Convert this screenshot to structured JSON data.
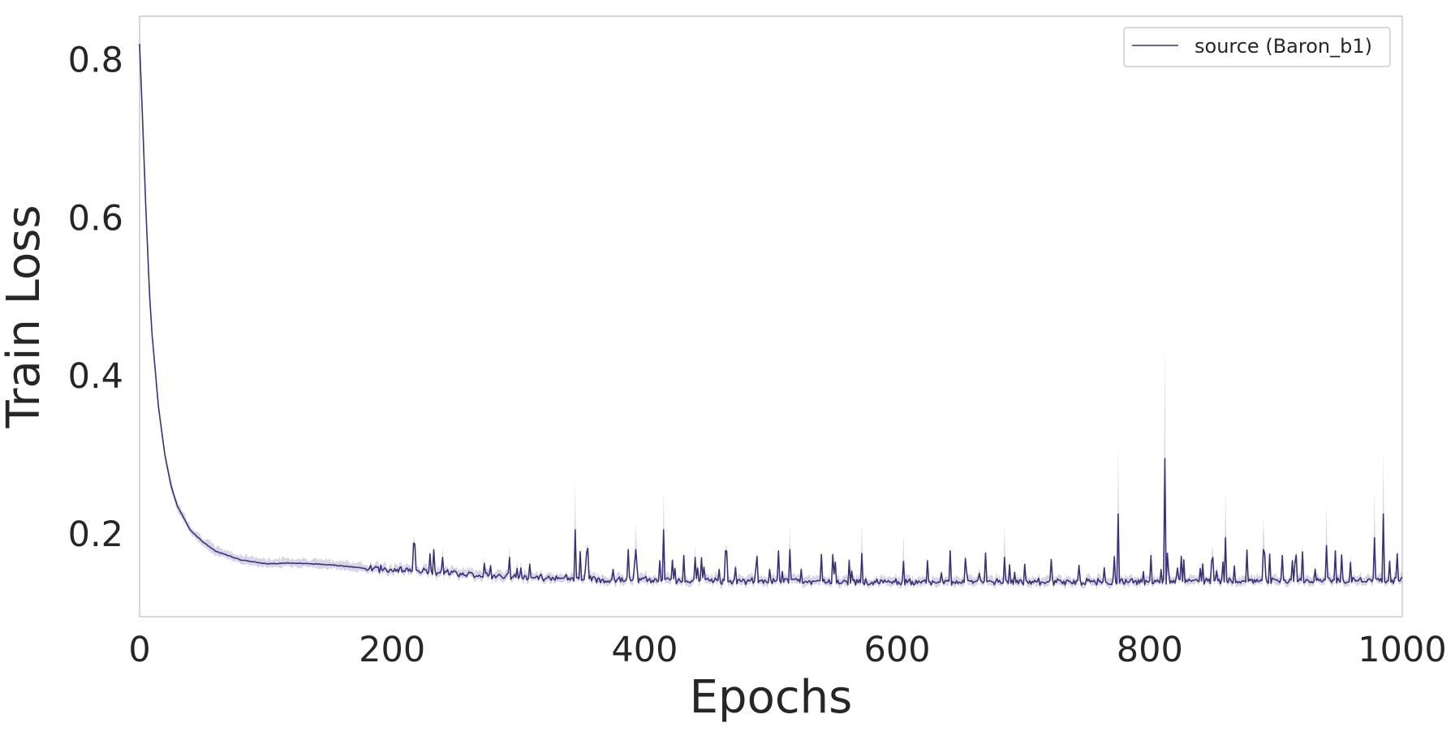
{
  "chart_data": {
    "type": "line",
    "title": "",
    "xlabel": "Epochs",
    "ylabel": "Train Loss",
    "xlim": [
      0,
      1000
    ],
    "ylim": [
      0.095,
      0.855
    ],
    "x_ticks": [
      0,
      200,
      400,
      600,
      800,
      1000
    ],
    "x_tick_labels": [
      "0",
      "200",
      "400",
      "600",
      "800",
      "1000"
    ],
    "y_ticks": [
      0.2,
      0.4,
      0.6,
      0.8
    ],
    "y_tick_labels": [
      "0.2",
      "0.4",
      "0.6",
      "0.8"
    ],
    "grid": false,
    "legend": {
      "position": "top-right",
      "entries": [
        "source (Baron_b1)"
      ]
    },
    "colors": {
      "line": "#3b3175",
      "band": "#8c86b8"
    },
    "series": [
      {
        "name": "source (Baron_b1)",
        "x": [
          0,
          2,
          5,
          8,
          10,
          15,
          20,
          25,
          30,
          40,
          50,
          60,
          80,
          100,
          120,
          150,
          180,
          200,
          230,
          250,
          270,
          300,
          330,
          350,
          370,
          400,
          430,
          450,
          480,
          500,
          530,
          550,
          580,
          600,
          630,
          650,
          680,
          700,
          730,
          750,
          780,
          800,
          830,
          850,
          880,
          900,
          930,
          950,
          980,
          1000
        ],
        "y": [
          0.82,
          0.74,
          0.61,
          0.5,
          0.45,
          0.36,
          0.3,
          0.26,
          0.235,
          0.205,
          0.19,
          0.178,
          0.167,
          0.162,
          0.163,
          0.161,
          0.156,
          0.155,
          0.152,
          0.15,
          0.147,
          0.145,
          0.144,
          0.143,
          0.142,
          0.142,
          0.141,
          0.141,
          0.14,
          0.14,
          0.14,
          0.139,
          0.139,
          0.139,
          0.139,
          0.139,
          0.139,
          0.139,
          0.139,
          0.139,
          0.139,
          0.139,
          0.14,
          0.14,
          0.14,
          0.141,
          0.141,
          0.141,
          0.141,
          0.141
        ],
        "spikes": [
          {
            "x": 240,
            "y": 0.17
          },
          {
            "x": 293,
            "y": 0.17
          },
          {
            "x": 345,
            "y": 0.205
          },
          {
            "x": 393,
            "y": 0.18
          },
          {
            "x": 415,
            "y": 0.205
          },
          {
            "x": 440,
            "y": 0.17
          },
          {
            "x": 515,
            "y": 0.18
          },
          {
            "x": 572,
            "y": 0.175
          },
          {
            "x": 605,
            "y": 0.165
          },
          {
            "x": 685,
            "y": 0.17
          },
          {
            "x": 775,
            "y": 0.225
          },
          {
            "x": 812,
            "y": 0.295
          },
          {
            "x": 850,
            "y": 0.17
          },
          {
            "x": 860,
            "y": 0.195
          },
          {
            "x": 890,
            "y": 0.18
          },
          {
            "x": 940,
            "y": 0.185
          },
          {
            "x": 978,
            "y": 0.195
          },
          {
            "x": 985,
            "y": 0.225
          }
        ],
        "band_peaks": [
          {
            "x": 345,
            "y": 0.265
          },
          {
            "x": 393,
            "y": 0.215
          },
          {
            "x": 415,
            "y": 0.255
          },
          {
            "x": 515,
            "y": 0.21
          },
          {
            "x": 572,
            "y": 0.215
          },
          {
            "x": 605,
            "y": 0.2
          },
          {
            "x": 685,
            "y": 0.21
          },
          {
            "x": 775,
            "y": 0.31
          },
          {
            "x": 812,
            "y": 0.44
          },
          {
            "x": 860,
            "y": 0.255
          },
          {
            "x": 890,
            "y": 0.22
          },
          {
            "x": 940,
            "y": 0.235
          },
          {
            "x": 978,
            "y": 0.255
          },
          {
            "x": 985,
            "y": 0.305
          }
        ]
      }
    ]
  }
}
